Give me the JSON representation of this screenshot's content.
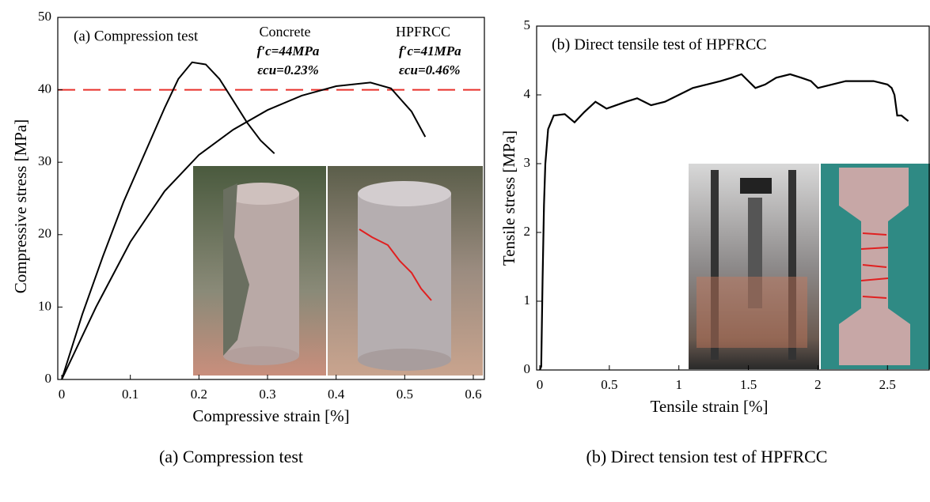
{
  "chart_data": [
    {
      "type": "line",
      "title": "(a) Compression test",
      "xlabel": "Compressive strain  [%]",
      "ylabel": "Compressive stress  [MPa]",
      "caption": "(a) Compression test",
      "xlim": [
        0,
        0.6
      ],
      "xticks": [
        0,
        0.1,
        0.2,
        0.3,
        0.4,
        0.5,
        0.6
      ],
      "ylim": [
        0,
        50
      ],
      "yticks": [
        0,
        10,
        20,
        30,
        40,
        50
      ],
      "hlines": [
        {
          "value": 40,
          "color": "#e8302a"
        }
      ],
      "series": [
        {
          "name": "Concrete",
          "color": "#000000",
          "annotations": [
            "f′c=44MPa",
            "εcu=0.23%"
          ],
          "x": [
            0,
            0.03,
            0.06,
            0.09,
            0.12,
            0.15,
            0.17,
            0.19,
            0.21,
            0.23,
            0.25,
            0.27,
            0.29,
            0.31
          ],
          "values": [
            0,
            9,
            17,
            24.5,
            31,
            37.5,
            41.5,
            43.8,
            43.5,
            41.5,
            38.5,
            35.5,
            33,
            31.2
          ]
        },
        {
          "name": "HPFRCC",
          "color": "#000000",
          "annotations": [
            "f′c=41MPa",
            "εcu=0.46%"
          ],
          "x": [
            0,
            0.05,
            0.1,
            0.15,
            0.2,
            0.25,
            0.3,
            0.35,
            0.4,
            0.45,
            0.48,
            0.51,
            0.53
          ],
          "values": [
            0,
            10,
            19,
            26,
            31,
            34.5,
            37.2,
            39.2,
            40.5,
            41,
            40.2,
            37,
            33.5
          ]
        }
      ]
    },
    {
      "type": "line",
      "title": "(b) Direct tensile test of HPFRCC",
      "xlabel": "Tensile strain  [%]",
      "ylabel": "Tensile stress  [MPa]",
      "caption": "(b) Direct tension test of HPFRCC",
      "xlim": [
        0,
        2.8
      ],
      "xticks": [
        0,
        0.5,
        1,
        1.5,
        2,
        2.5
      ],
      "ylim": [
        0,
        5
      ],
      "yticks": [
        0,
        1,
        2,
        3,
        4,
        5
      ],
      "series": [
        {
          "color": "#000000",
          "x": [
            0,
            0.01,
            0.02,
            0.03,
            0.04,
            0.06,
            0.1,
            0.18,
            0.25,
            0.32,
            0.4,
            0.48,
            0.55,
            0.62,
            0.7,
            0.8,
            0.9,
            1.0,
            1.1,
            1.2,
            1.3,
            1.38,
            1.45,
            1.5,
            1.55,
            1.62,
            1.7,
            1.8,
            1.88,
            1.95,
            2.0,
            2.1,
            2.2,
            2.3,
            2.4,
            2.5,
            2.53,
            2.55,
            2.57,
            2.6,
            2.63,
            2.65
          ],
          "values": [
            0,
            0.05,
            1.3,
            2.4,
            3.0,
            3.5,
            3.7,
            3.72,
            3.6,
            3.75,
            3.9,
            3.8,
            3.85,
            3.9,
            3.95,
            3.85,
            3.9,
            4.0,
            4.1,
            4.15,
            4.2,
            4.25,
            4.3,
            4.2,
            4.1,
            4.15,
            4.25,
            4.3,
            4.25,
            4.2,
            4.1,
            4.15,
            4.2,
            4.2,
            4.2,
            4.15,
            4.1,
            4.0,
            3.7,
            3.7,
            3.65,
            3.62
          ]
        }
      ]
    }
  ]
}
